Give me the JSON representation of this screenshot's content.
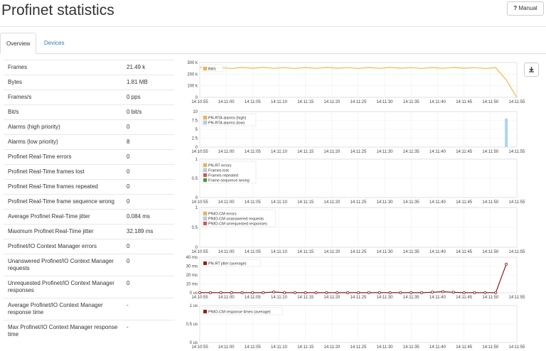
{
  "header": {
    "title": "Profinet statistics",
    "button": "Manual"
  },
  "tabs": [
    "Overview",
    "Devices"
  ],
  "table": {
    "rows": [
      [
        "Frames",
        "21.49 k"
      ],
      [
        "Bytes",
        "1.81 MB"
      ],
      [
        "Frames/s",
        "0 pps"
      ],
      [
        "Bit/s",
        "0 bit/s"
      ],
      [
        "Alarms (high priority)",
        "0"
      ],
      [
        "Alarms (low priority)",
        "8"
      ],
      [
        "Profinet Real-Time errors",
        "0"
      ],
      [
        "Profinet Real-Time frames lost",
        "0"
      ],
      [
        "Profinet Real-Time frames repeated",
        "0"
      ],
      [
        "Profinet Real-Time frame sequence wrong",
        "0"
      ],
      [
        "Average Profinet Real-Time jitter",
        "0.084 ms"
      ],
      [
        "Maximum Profinet Real-Time jitter",
        "32.189 ms"
      ],
      [
        "Profinet/IO Context Manager errors",
        "0"
      ],
      [
        "Unanswered Profinet/IO Context Manager requests",
        "0"
      ],
      [
        "Unrequested Profinet/IO Context Manager responses",
        "0"
      ],
      [
        "Average Profinet/IO Context Manager response time",
        "-"
      ],
      [
        "Max Profinet/IO Context Manager response time",
        "-"
      ]
    ]
  },
  "chart_data": [
    {
      "type": "line",
      "xlim": [
        "14:10:55",
        "14:11:55"
      ],
      "xticks": [
        "14:10:55",
        "14:11:00",
        "14:11:05",
        "14:11:10",
        "14:11:15",
        "14:11:20",
        "14:11:25",
        "14:11:30",
        "14:11:35",
        "14:11:40",
        "14:11:45",
        "14:11:50",
        "14:11:55"
      ],
      "ylim": [
        0,
        300000
      ],
      "yticks": [
        0,
        {
          "value": 100000,
          "label": "100 k"
        },
        {
          "value": 200000,
          "label": "200 k"
        },
        {
          "value": 300000,
          "label": "300 k"
        }
      ],
      "series": [
        {
          "name": "Bit/s",
          "color": "#f0b94a",
          "x": [
            "14:10:55",
            "14:10:57",
            "14:10:59",
            "14:11:01",
            "14:11:03",
            "14:11:05",
            "14:11:07",
            "14:11:09",
            "14:11:11",
            "14:11:13",
            "14:11:15",
            "14:11:17",
            "14:11:19",
            "14:11:21",
            "14:11:23",
            "14:11:25",
            "14:11:27",
            "14:11:29",
            "14:11:31",
            "14:11:33",
            "14:11:35",
            "14:11:37",
            "14:11:39",
            "14:11:41",
            "14:11:43",
            "14:11:45",
            "14:11:47",
            "14:11:49",
            "14:11:51",
            "14:11:53",
            "14:11:55"
          ],
          "values": [
            258000,
            250000,
            256000,
            249000,
            257000,
            251000,
            258000,
            250000,
            256000,
            249000,
            257000,
            250000,
            258000,
            251000,
            256000,
            249000,
            257000,
            250000,
            258000,
            251000,
            256000,
            249000,
            257000,
            250000,
            258000,
            251000,
            256000,
            249000,
            255000,
            150000,
            0
          ]
        }
      ]
    },
    {
      "type": "bar",
      "xlim": [
        "14:10:55",
        "14:11:55"
      ],
      "xticks": [
        "14:10:55",
        "14:11:00",
        "14:11:05",
        "14:11:10",
        "14:11:15",
        "14:11:20",
        "14:11:25",
        "14:11:30",
        "14:11:35",
        "14:11:40",
        "14:11:45",
        "14:11:50",
        "14:11:55"
      ],
      "ylim": [
        0,
        10
      ],
      "yticks": [
        0,
        2.5,
        5,
        7.5,
        10
      ],
      "series": [
        {
          "name": "PN-RTA alarms (high)",
          "color": "#f0b94a",
          "x": [
            "14:11:53"
          ],
          "values": [
            0
          ]
        },
        {
          "name": "PN-RTA alarms (low)",
          "color": "#aed3ee",
          "x": [
            "14:11:53"
          ],
          "values": [
            8
          ]
        }
      ]
    },
    {
      "type": "line",
      "xlim": [
        "14:10:55",
        "14:11:55"
      ],
      "xticks": [
        "14:10:55",
        "14:11:00",
        "14:11:05",
        "14:11:10",
        "14:11:15",
        "14:11:20",
        "14:11:25",
        "14:11:30",
        "14:11:35",
        "14:11:40",
        "14:11:45",
        "14:11:50",
        "14:11:55"
      ],
      "ylim": [
        0,
        1
      ],
      "yticks": [
        0,
        0.5,
        1
      ],
      "series": [
        {
          "name": "PN-RT errors",
          "color": "#f0b94a"
        },
        {
          "name": "Frames lost",
          "color": "#aed3ee"
        },
        {
          "name": "Frames repeated",
          "color": "#d9534f"
        },
        {
          "name": "Frame sequence wrong",
          "color": "#3c9a3c"
        }
      ]
    },
    {
      "type": "line",
      "xlim": [
        "14:10:55",
        "14:11:55"
      ],
      "xticks": [
        "14:10:55",
        "14:11:00",
        "14:11:05",
        "14:11:10",
        "14:11:15",
        "14:11:20",
        "14:11:25",
        "14:11:30",
        "14:11:35",
        "14:11:40",
        "14:11:45",
        "14:11:50",
        "14:11:55"
      ],
      "ylim": [
        0,
        1
      ],
      "yticks": [
        0,
        0.5,
        1
      ],
      "series": [
        {
          "name": "PNIO-CM errors",
          "color": "#f0b94a"
        },
        {
          "name": "PNIO-CM unanswered requests",
          "color": "#aed3ee"
        },
        {
          "name": "PNIO-CM unrequested responses",
          "color": "#d9534f"
        }
      ]
    },
    {
      "type": "line",
      "xlim": [
        "14:10:55",
        "14:11:55"
      ],
      "xticks": [
        "14:10:55",
        "14:11:00",
        "14:11:05",
        "14:11:10",
        "14:11:15",
        "14:11:20",
        "14:11:25",
        "14:11:30",
        "14:11:35",
        "14:11:40",
        "14:11:45",
        "14:11:50",
        "14:11:55"
      ],
      "ylim": [
        0,
        40
      ],
      "yticks": [
        {
          "value": 0,
          "label": "0 us"
        },
        {
          "value": 10,
          "label": "10 ms"
        },
        {
          "value": 20,
          "label": "20 ms"
        },
        {
          "value": 30,
          "label": "30 ms"
        },
        {
          "value": 40,
          "label": "40 ms"
        }
      ],
      "series": [
        {
          "name": "PN-RT jitter (average)",
          "color": "#8b1a1a",
          "markers": true,
          "x": [
            "14:10:55",
            "14:10:57",
            "14:10:59",
            "14:11:01",
            "14:11:03",
            "14:11:05",
            "14:11:07",
            "14:11:09",
            "14:11:11",
            "14:11:13",
            "14:11:15",
            "14:11:17",
            "14:11:19",
            "14:11:21",
            "14:11:23",
            "14:11:25",
            "14:11:27",
            "14:11:29",
            "14:11:31",
            "14:11:33",
            "14:11:35",
            "14:11:37",
            "14:11:39",
            "14:11:41",
            "14:11:43",
            "14:11:45",
            "14:11:47",
            "14:11:49",
            "14:11:51",
            "14:11:53"
          ],
          "values": [
            0.1,
            0.1,
            0.1,
            0.1,
            0.1,
            0.1,
            0.1,
            0.8,
            0.1,
            0.1,
            0.1,
            0.1,
            0.1,
            0.1,
            0.1,
            0.1,
            0.1,
            0.1,
            0.1,
            0.1,
            0.1,
            0.1,
            0.6,
            1.2,
            0.5,
            0.1,
            0.1,
            0.1,
            0.1,
            32.189
          ]
        }
      ]
    },
    {
      "type": "line",
      "xlim": [
        "14:10:55",
        "14:11:55"
      ],
      "xticks": [
        "14:10:55",
        "14:11:00",
        "14:11:05",
        "14:11:10",
        "14:11:15",
        "14:11:20",
        "14:11:25",
        "14:11:30",
        "14:11:35",
        "14:11:40",
        "14:11:45",
        "14:11:50",
        "14:11:55"
      ],
      "ylim": [
        0,
        1
      ],
      "yticks": [
        {
          "value": 0,
          "label": "0 us"
        },
        {
          "value": 0.5,
          "label": "0.5 us"
        },
        {
          "value": 1,
          "label": "1 us"
        }
      ],
      "series": [
        {
          "name": "PNIO-CM response times (average)",
          "color": "#8b1a1a"
        }
      ]
    }
  ]
}
